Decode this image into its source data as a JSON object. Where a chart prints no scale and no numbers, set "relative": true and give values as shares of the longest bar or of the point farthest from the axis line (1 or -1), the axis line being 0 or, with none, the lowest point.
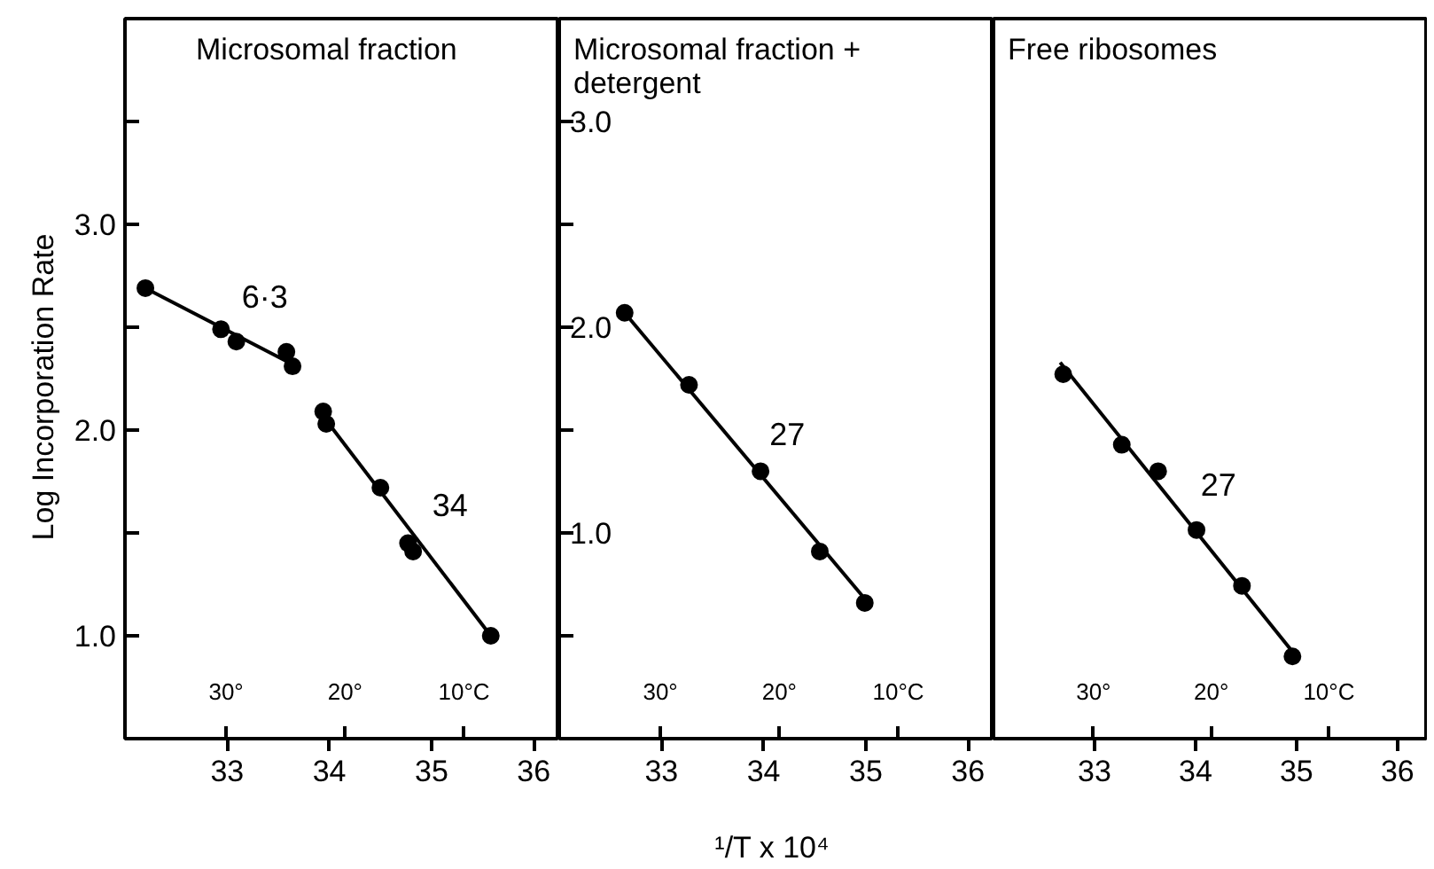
{
  "chart_data": [
    {
      "type": "scatter",
      "title": "Microsomal fraction",
      "ylabel": "Log   Incorporation Rate",
      "marker": "circle",
      "grid": false,
      "xlim": [
        32.0,
        36.25
      ],
      "xticks": [
        33,
        34,
        35,
        36
      ],
      "ylim": [
        0.5,
        4.0
      ],
      "yticks": [
        {
          "value": 1.0,
          "label": "1.0"
        },
        {
          "value": 1.5,
          "label": null
        },
        {
          "value": 2.0,
          "label": "2.0"
        },
        {
          "value": 2.5,
          "label": null
        },
        {
          "value": 3.0,
          "label": "3.0"
        },
        {
          "value": 3.5,
          "label": null
        }
      ],
      "x2lim": [
        38.5,
        2.0
      ],
      "x2ticks": [
        {
          "value": 30,
          "label": "30°"
        },
        {
          "value": 20,
          "label": "20°"
        },
        {
          "value": 10,
          "label": "10°C"
        }
      ],
      "series": [
        {
          "color": "#000000",
          "x": [
            32.2,
            32.94,
            33.09,
            33.58,
            33.64,
            33.94,
            33.97,
            34.5,
            34.77,
            34.82,
            35.58
          ],
          "values": [
            2.69,
            2.49,
            2.43,
            2.38,
            2.31,
            2.09,
            2.03,
            1.72,
            1.45,
            1.41,
            1.0
          ]
        },
        {
          "type": "line",
          "marker": "none",
          "color": "#000000",
          "x": [
            32.2,
            33.6
          ],
          "values": [
            2.69,
            2.33
          ]
        },
        {
          "type": "line",
          "marker": "none",
          "color": "#000000",
          "x": [
            33.95,
            35.58
          ],
          "values": [
            2.06,
            1.0
          ]
        }
      ],
      "annotations": [
        "6·3",
        "34"
      ]
    },
    {
      "type": "scatter",
      "title": "Microsomal fraction +\ndetergent",
      "xlabel": "¹/T  x 10⁴",
      "marker": "circle",
      "grid": false,
      "xlim": [
        32.0,
        36.25
      ],
      "xticks": [
        33,
        34,
        35,
        36
      ],
      "ylim": [
        0.0,
        3.5
      ],
      "yticks": [
        {
          "value": 0.5,
          "label": null
        },
        {
          "value": 1.0,
          "label": "1.0"
        },
        {
          "value": 1.5,
          "label": null
        },
        {
          "value": 2.0,
          "label": "2.0"
        },
        {
          "value": 2.5,
          "label": null
        },
        {
          "value": 3.0,
          "label": "3.0"
        }
      ],
      "x2lim": [
        38.5,
        2.0
      ],
      "x2ticks": [
        {
          "value": 30,
          "label": "30°"
        },
        {
          "value": 20,
          "label": "20°"
        },
        {
          "value": 10,
          "label": "10°C"
        }
      ],
      "series": [
        {
          "color": "#000000",
          "x": [
            32.64,
            33.27,
            33.97,
            34.55,
            34.99
          ],
          "values": [
            2.07,
            1.72,
            1.3,
            0.91,
            0.66
          ]
        },
        {
          "type": "line",
          "marker": "none",
          "color": "#000000",
          "x": [
            32.64,
            34.99
          ],
          "values": [
            2.07,
            0.68
          ]
        }
      ],
      "annotations": [
        "27"
      ]
    },
    {
      "type": "scatter",
      "title": "Free  ribosomes",
      "marker": "circle",
      "grid": false,
      "tick_labels": "x",
      "xlim": [
        32.0,
        36.3
      ],
      "xticks": [
        33,
        34,
        35,
        36
      ],
      "relative": true,
      "x2lim": [
        38.5,
        1.6
      ],
      "x2ticks": [
        {
          "value": 30,
          "label": "30°"
        },
        {
          "value": 20,
          "label": "20°"
        },
        {
          "value": 10,
          "label": "10°C"
        }
      ],
      "series": [
        {
          "color": "#000000",
          "x": [
            32.69,
            33.27,
            33.63,
            34.01,
            34.46,
            34.96
          ],
          "values": [
            0.96,
            0.72,
            0.63,
            0.43,
            0.24,
            0.0
          ]
        },
        {
          "type": "line",
          "marker": "none",
          "color": "#000000",
          "x": [
            32.66,
            34.95
          ],
          "values": [
            1.0,
            0.02
          ]
        }
      ],
      "annotations": [
        "27"
      ]
    }
  ]
}
